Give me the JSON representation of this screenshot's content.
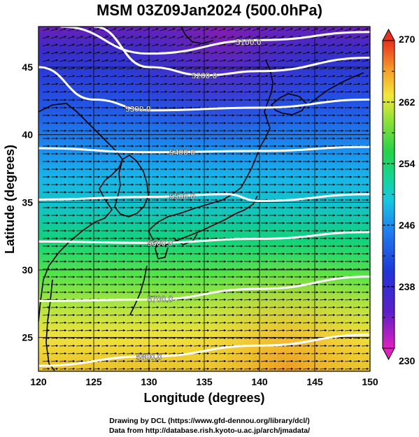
{
  "title": "MSM 03Z09Jan2024 (500.0hPa)",
  "xlabel": "Longitude (degrees)",
  "ylabel": "Latitude  (degrees)",
  "x_ticks": [
    "120",
    "125",
    "130",
    "135",
    "140",
    "145",
    "150"
  ],
  "y_ticks": [
    "25",
    "30",
    "35",
    "40",
    "45"
  ],
  "colorbar_ticks": [
    "270",
    "262",
    "254",
    "246",
    "238",
    "230"
  ],
  "contour_labels": [
    "5100.0",
    "5200.0",
    "5300.0",
    "5400.0",
    "5500.0",
    "5600.0",
    "5700.0",
    "5800.0"
  ],
  "credit_line1": "Drawing by DCL (https://www.gfd-dennou.org/library/dcl/)",
  "credit_line2": "Data from http://database.rish.kyoto-u.ac.jp/arch/jmadata/",
  "colors": {
    "contour": "#ffffff",
    "coast": "#000000",
    "arrow": "#000000"
  },
  "chart_data": {
    "type": "heatmap",
    "description_fields": "temperature shaded (K), geopotential height contours (m), wind vectors",
    "xlim": [
      120,
      150
    ],
    "ylim": [
      22.5,
      48
    ],
    "colorbar_range": [
      230,
      270
    ],
    "contour_levels": [
      5100,
      5200,
      5300,
      5400,
      5500,
      5600,
      5700,
      5800
    ],
    "contour_lat_at_lon": [
      {
        "level": 5100,
        "lats": [
          [
            122,
            48.0
          ],
          [
            130,
            46.0
          ],
          [
            140,
            47.0
          ],
          [
            150,
            47.6
          ]
        ]
      },
      {
        "level": 5200,
        "lats": [
          [
            125,
            48.0
          ],
          [
            130,
            45.0
          ],
          [
            135,
            44.4
          ],
          [
            140,
            44.7
          ],
          [
            150,
            45.7
          ]
        ]
      },
      {
        "level": 5300,
        "lats": [
          [
            120,
            45.0
          ],
          [
            125,
            42.6
          ],
          [
            130,
            41.8
          ],
          [
            140,
            42.0
          ],
          [
            150,
            42.6
          ]
        ]
      },
      {
        "level": 5400,
        "lats": [
          [
            120,
            39.0
          ],
          [
            130,
            38.7
          ],
          [
            140,
            38.8
          ],
          [
            150,
            39.1
          ]
        ]
      },
      {
        "level": 5500,
        "lats": [
          [
            120,
            35.2
          ],
          [
            130,
            35.4
          ],
          [
            137,
            35.6
          ],
          [
            140,
            35.1
          ],
          [
            150,
            35.6
          ]
        ]
      },
      {
        "level": 5600,
        "lats": [
          [
            120,
            32.1
          ],
          [
            130,
            32.0
          ],
          [
            140,
            32.3
          ],
          [
            150,
            32.8
          ]
        ]
      },
      {
        "level": 5700,
        "lats": [
          [
            120,
            27.7
          ],
          [
            130,
            27.8
          ],
          [
            140,
            28.6
          ],
          [
            150,
            29.5
          ]
        ]
      },
      {
        "level": 5800,
        "lats": [
          [
            120,
            22.9
          ],
          [
            130,
            23.6
          ],
          [
            140,
            24.4
          ],
          [
            150,
            25.2
          ]
        ]
      }
    ]
  }
}
